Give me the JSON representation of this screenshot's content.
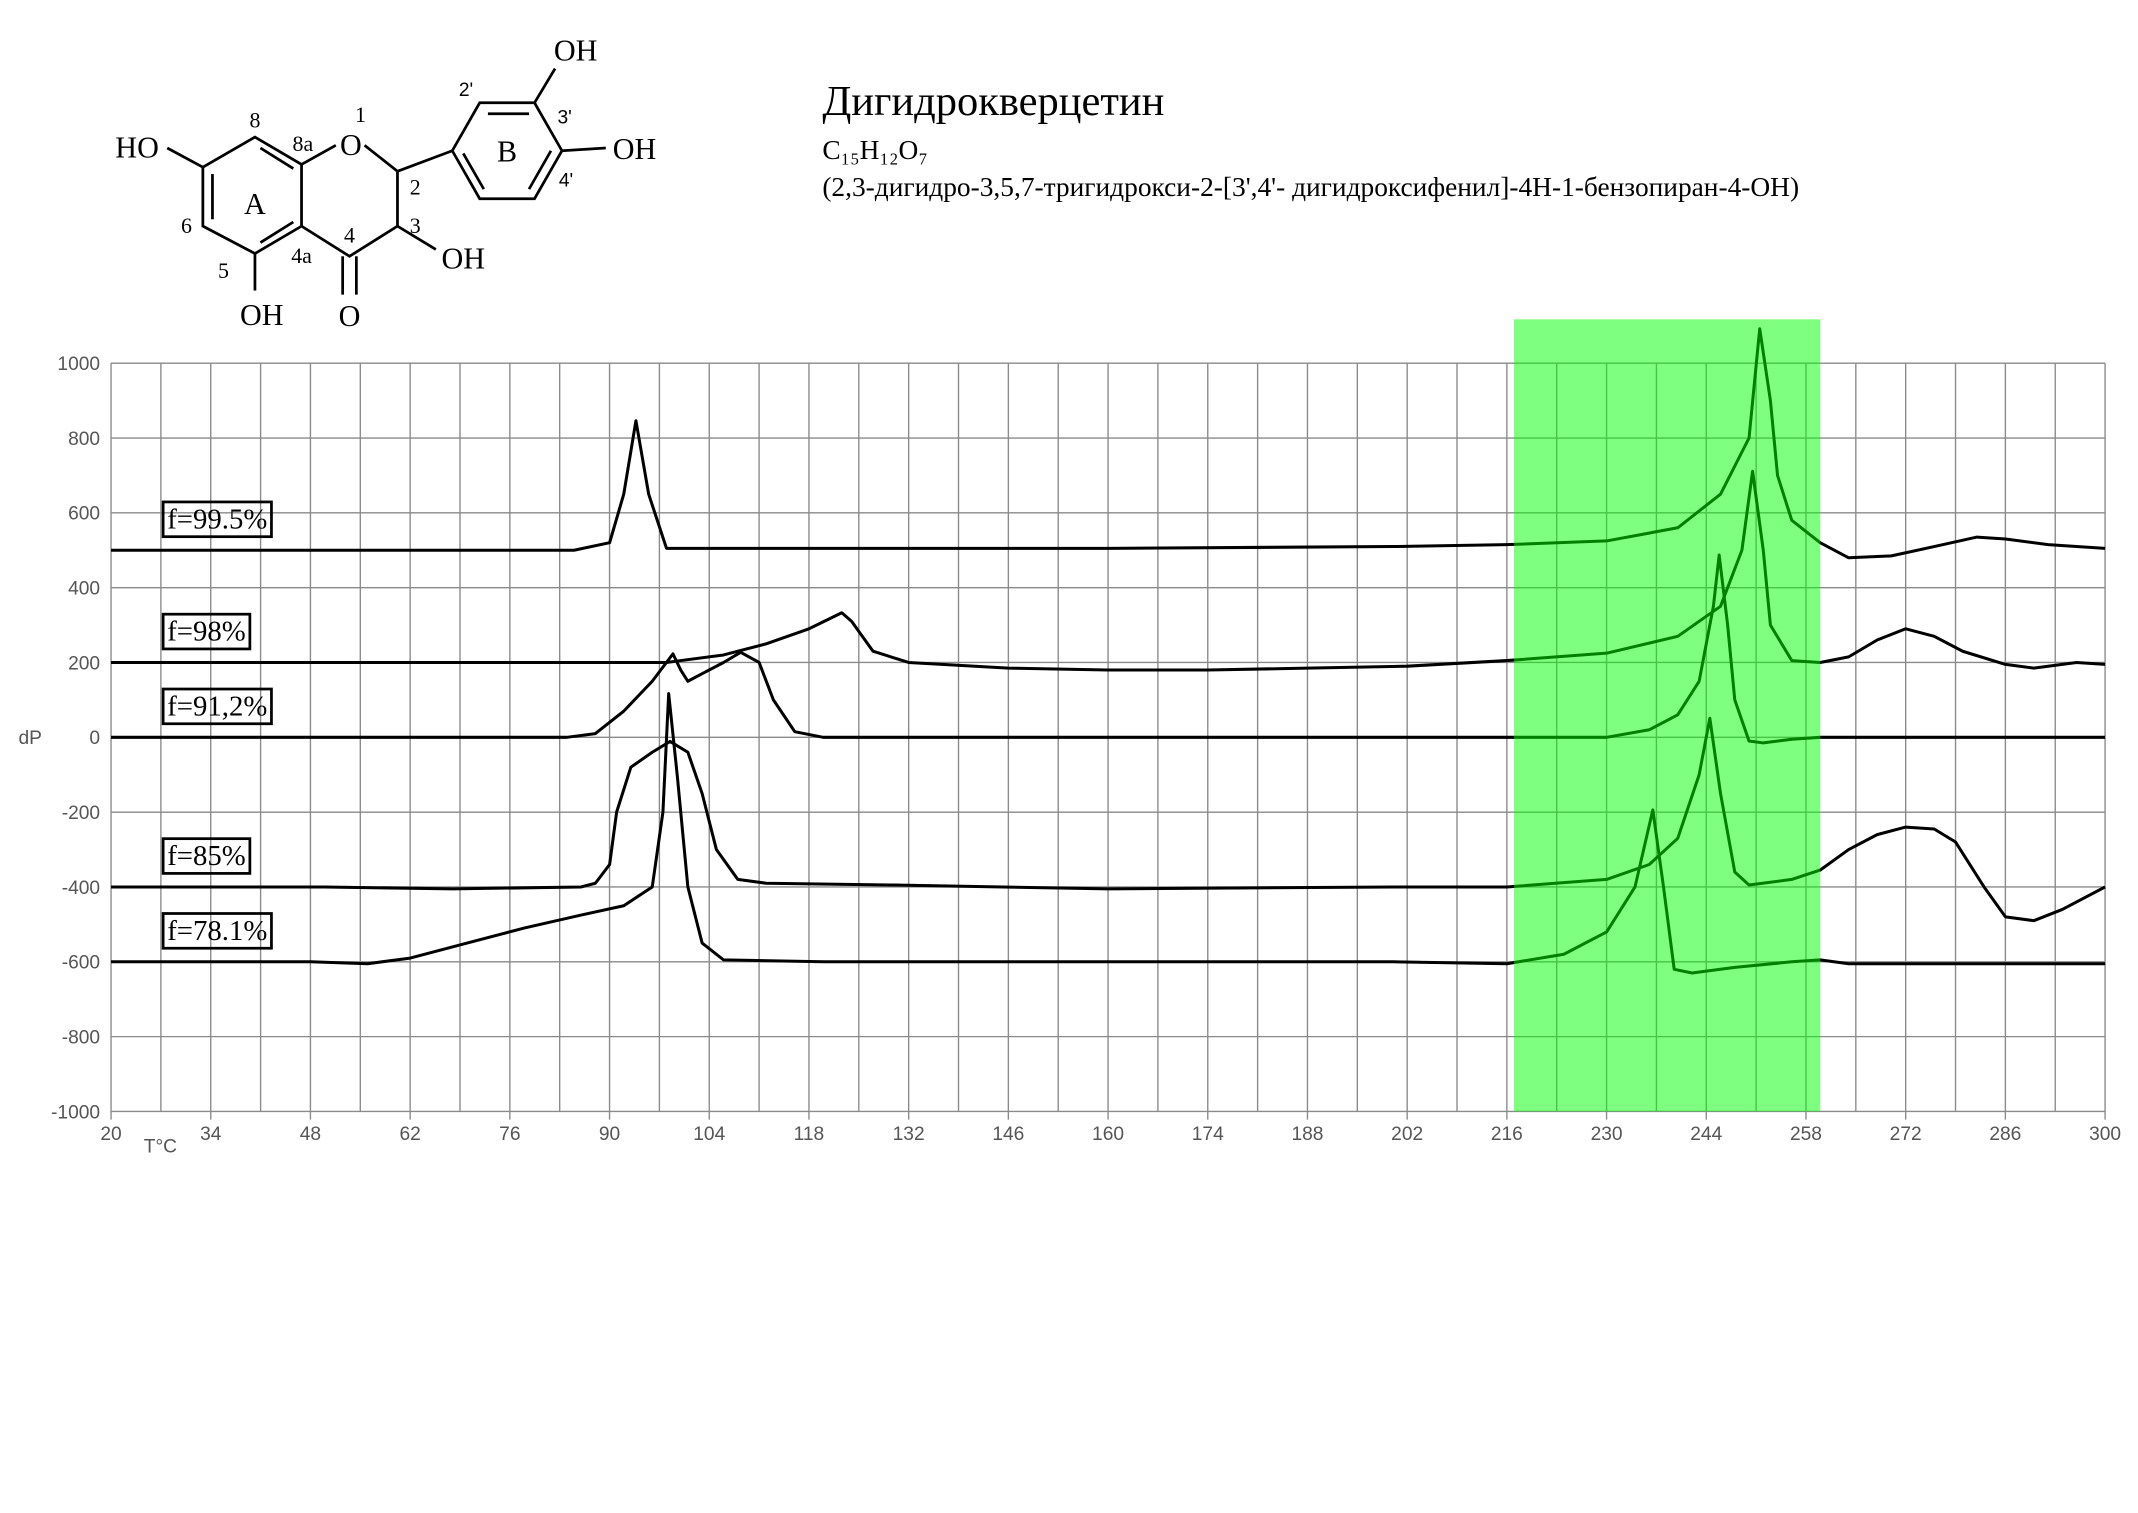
{
  "structure": {
    "labels": [
      "HO",
      "OH",
      "O",
      "OH",
      "O",
      "OH",
      "OH",
      "A",
      "B",
      "8",
      "8a",
      "1",
      "2",
      "3",
      "4",
      "4a",
      "5",
      "6",
      "2'",
      "3'",
      "4'"
    ]
  },
  "header": {
    "title": "Дигидрокверцетин",
    "formula": "C₁₅H₁₂O₇",
    "subtitle": "(2,3-дигидро-3,5,7-тригидрокси-2-[3',4'- дигидроксифенил]-4H-1-бензопиран-4-OH)"
  },
  "chart_data": {
    "type": "line",
    "x_label": "T°C",
    "y_label": "dP",
    "xlim": [
      20,
      300
    ],
    "ylim": [
      -1000,
      1000
    ],
    "xticks": [
      20,
      34,
      48,
      62,
      76,
      90,
      104,
      118,
      132,
      146,
      160,
      174,
      188,
      202,
      216,
      230,
      244,
      258,
      272,
      286,
      300
    ],
    "x_minor_gridlines": [
      27,
      41,
      55,
      69,
      83,
      97,
      111,
      125,
      139,
      153,
      167,
      181,
      195,
      209,
      223,
      237,
      251,
      265,
      279,
      293
    ],
    "yticks": [
      -1000,
      -800,
      -600,
      -400,
      -200,
      0,
      200,
      400,
      600,
      800,
      1000
    ],
    "grid": true,
    "highlight": {
      "xrange": [
        217,
        260
      ],
      "color": "#00ff00"
    },
    "series": [
      {
        "name": "f=99.5%",
        "color": "#000000",
        "x": [
          20,
          50,
          85,
          90,
          92,
          93.7,
          95.5,
          98,
          120,
          160,
          200,
          216,
          230,
          240,
          246,
          250,
          251.5,
          253,
          254,
          256,
          260,
          264,
          270,
          276,
          282,
          286,
          292,
          300
        ],
        "values": [
          500,
          500,
          500,
          520,
          650,
          846,
          650,
          505,
          505,
          505,
          510,
          515,
          525,
          560,
          650,
          800,
          1092,
          900,
          700,
          580,
          520,
          480,
          485,
          510,
          535,
          530,
          515,
          505
        ]
      },
      {
        "name": "f=98%",
        "color": "#000000",
        "x": [
          20,
          60,
          98,
          100,
          106,
          112,
          118,
          122.6,
          124,
          127,
          132,
          146,
          160,
          174,
          188,
          202,
          216,
          230,
          240,
          246,
          249,
          250.5,
          252,
          253,
          256,
          260,
          264,
          268,
          272,
          276,
          280,
          286,
          290,
          296,
          300
        ],
        "values": [
          200,
          200,
          200,
          205,
          220,
          250,
          290,
          333,
          310,
          230,
          200,
          185,
          180,
          180,
          185,
          190,
          205,
          225,
          270,
          350,
          500,
          711,
          500,
          300,
          205,
          200,
          215,
          260,
          290,
          270,
          230,
          195,
          185,
          200,
          195
        ]
      },
      {
        "name": "f=91,2%",
        "color": "#000000",
        "x": [
          20,
          60,
          84,
          88,
          92,
          96,
          98.9,
          100,
          101,
          103,
          106,
          108.4,
          111,
          113,
          116,
          120,
          160,
          200,
          230,
          236,
          240,
          243,
          245,
          245.8,
          247,
          248,
          250,
          252,
          256,
          260,
          300
        ],
        "values": [
          0,
          0,
          0,
          10,
          70,
          150,
          223,
          180,
          150,
          170,
          200,
          227,
          200,
          100,
          15,
          0,
          0,
          0,
          0,
          20,
          60,
          150,
          350,
          487,
          300,
          100,
          -10,
          -15,
          -5,
          0,
          0
        ]
      },
      {
        "name": "f=85%",
        "color": "#000000",
        "x": [
          20,
          50,
          68,
          86,
          88,
          90,
          91,
          93,
          96,
          98.5,
          101,
          103,
          105,
          108,
          112,
          130,
          160,
          200,
          216,
          230,
          236,
          240,
          243,
          244.5,
          246,
          248,
          250,
          256,
          260,
          264,
          268,
          272,
          276,
          279,
          283,
          286,
          290,
          294,
          300
        ],
        "values": [
          -400,
          -400,
          -405,
          -400,
          -390,
          -340,
          -200,
          -80,
          -40,
          -11,
          -40,
          -150,
          -300,
          -380,
          -390,
          -395,
          -405,
          -400,
          -400,
          -380,
          -340,
          -270,
          -100,
          51,
          -150,
          -360,
          -395,
          -380,
          -355,
          -300,
          -260,
          -240,
          -245,
          -280,
          -400,
          -480,
          -490,
          -460,
          -400
        ]
      },
      {
        "name": "f=78.1%",
        "color": "#000000",
        "x": [
          20,
          48,
          56,
          62,
          70,
          78,
          86,
          92,
          96,
          97.5,
          98.3,
          99.5,
          101,
          103,
          106,
          120,
          160,
          200,
          216,
          224,
          230,
          234,
          236.5,
          238,
          239.5,
          242,
          248,
          256,
          260,
          264,
          300
        ],
        "values": [
          -600,
          -600,
          -605,
          -590,
          -550,
          -510,
          -475,
          -450,
          -400,
          -200,
          117,
          -100,
          -400,
          -550,
          -595,
          -600,
          -600,
          -600,
          -605,
          -580,
          -520,
          -400,
          -194,
          -400,
          -620,
          -630,
          -615,
          -600,
          -595,
          -605,
          -605
        ]
      }
    ]
  }
}
